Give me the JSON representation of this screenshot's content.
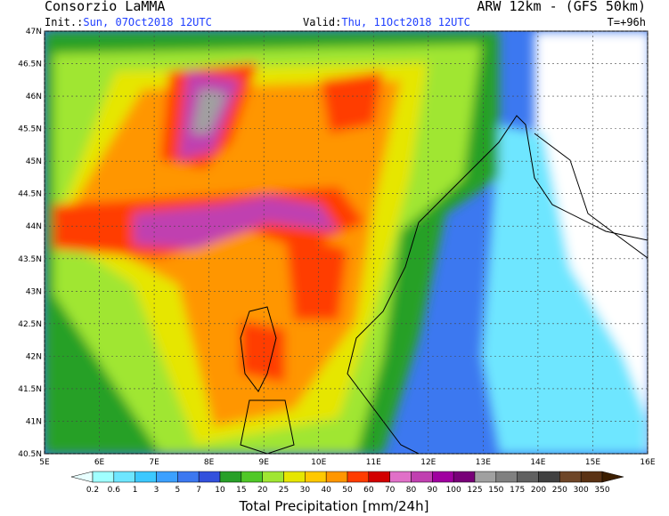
{
  "header": {
    "left_title": "Consorzio LaMMA",
    "init_label": "Init.:",
    "init_time": "Sun, 07Oct2018 12UTC",
    "right_title": "ARW 12km - (GFS 50km)",
    "valid_label": "Valid:",
    "valid_time": "Thu, 11Oct2018 12UTC",
    "lead_time": "T=+96h"
  },
  "map": {
    "lat_labels": [
      "47N",
      "46.5N",
      "46N",
      "45.5N",
      "45N",
      "44.5N",
      "44N",
      "43.5N",
      "43N",
      "42.5N",
      "42N",
      "41.5N",
      "41N",
      "40.5N"
    ],
    "lon_labels": [
      "5E",
      "6E",
      "7E",
      "8E",
      "9E",
      "10E",
      "11E",
      "12E",
      "13E",
      "14E",
      "15E",
      "16E"
    ]
  },
  "colorbar": {
    "labels": [
      "0.2",
      "0.6",
      "1",
      "3",
      "5",
      "7",
      "10",
      "15",
      "20",
      "25",
      "30",
      "40",
      "50",
      "60",
      "70",
      "80",
      "90",
      "100",
      "125",
      "150",
      "175",
      "200",
      "250",
      "300",
      "350"
    ],
    "colors": [
      "#e8ffff",
      "#a0ffff",
      "#6ee6ff",
      "#3cc8ff",
      "#3ca0ff",
      "#3c78f0",
      "#3250dc",
      "#28a028",
      "#50c828",
      "#a0e632",
      "#e6e600",
      "#ffc800",
      "#ff9600",
      "#ff3c00",
      "#d20000",
      "#e070c8",
      "#c040b0",
      "#a000a0",
      "#780078",
      "#a0a0a0",
      "#808080",
      "#606060",
      "#404040",
      "#6e4628",
      "#5a3214",
      "#3c1e00"
    ],
    "title": "Total Precipitation [mm/24h]"
  }
}
